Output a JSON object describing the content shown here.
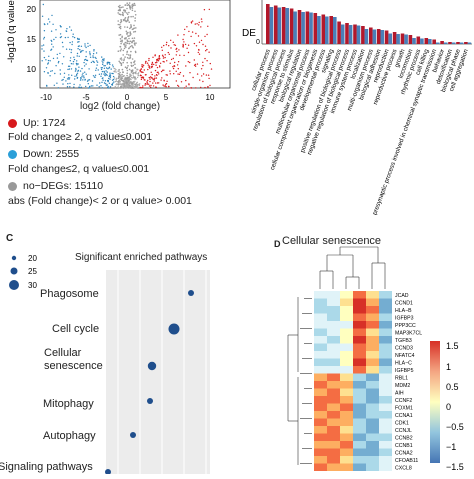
{
  "panel_a": {
    "ylabel": "-log10 (q value)",
    "xlabel": "log2 (fold change)",
    "yticks": [
      "10",
      "15",
      "20"
    ],
    "xticks": [
      "-10",
      "-5",
      "0",
      "5",
      "10"
    ],
    "legend": [
      {
        "label": "Up: 1724",
        "color": "#d7191c",
        "criteria": "Fold change≥ 2, q value≤0.001"
      },
      {
        "label": "Down: 2555",
        "color": "#2b83ba",
        "criteria": "Fold change≤2, q value≤0.001"
      },
      {
        "label": "no−DEGs: 15110",
        "color": "#999999",
        "criteria": "abs (Fold change)< 2  or q value> 0.001"
      }
    ]
  },
  "panel_b": {
    "ylabel": "DE",
    "ytick": "0",
    "colors": {
      "red": "#b2182b",
      "blue": "#4a7fb8"
    },
    "categories": [
      "cellular process",
      "single-organism process",
      "regulation of biological process",
      "response to stimulus",
      "biological regulation",
      "multicellular organismal process",
      "cellular component organization or biogenesis",
      "developmental process",
      "signaling",
      "positive regulation of biological process",
      "negative regulation of biological process",
      "immune system process",
      "localization",
      "multi-organism process",
      "biological adhesion",
      "reproduction",
      "reproductive process",
      "growth",
      "locomotion",
      "rhythmic process",
      "cell killing",
      "presynaptic process involved in chemical synaptic transmission",
      "behavior",
      "detoxification",
      "biological phase",
      "cell aggregation"
    ]
  },
  "panel_c": {
    "letter": "C",
    "title": "Significant enriched pathways",
    "size_legend": [
      "20",
      "25",
      "30"
    ],
    "pathways": [
      {
        "name": "Phagosome",
        "size": 20
      },
      {
        "name": "Cell cycle",
        "size": 30
      },
      {
        "name": "Cellular senescence",
        "size": 25
      },
      {
        "name": "Mitophagy",
        "size": 20
      },
      {
        "name": "Autophagy",
        "size": 20
      },
      {
        "name": "Signaling pathways",
        "size": 20
      }
    ]
  },
  "panel_d": {
    "letter": "D",
    "title": "Cellular senescence",
    "genes": [
      "JCAD",
      "CCND1",
      "HLA−B",
      "IGFBP3",
      "PPP3CC",
      "MAP3K7CL",
      "TGFB3",
      "CCND3",
      "NFATC4",
      "HLA−C",
      "IGFBP5",
      "RBL1",
      "MDM2",
      "AIH",
      "CCNF2",
      "FOXM1",
      "CCNA1",
      "CDK1",
      "CCNJL",
      "CCNB2",
      "CCNB1",
      "CCNA2",
      "CFOAB11",
      "CXCL8"
    ],
    "scale": [
      "1.5",
      "1",
      "0.5",
      "0",
      "−0.5",
      "−1",
      "−1.5"
    ]
  }
}
